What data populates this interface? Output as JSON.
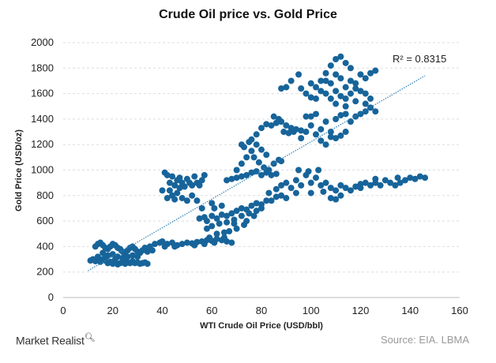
{
  "chart_data": {
    "type": "scatter",
    "title": "Crude Oil price vs. Gold Price",
    "xlabel": "WTI Crude Oil Price (USD/bbl)",
    "ylabel": "Gold Price (USD/oz)",
    "xlim": [
      0,
      160
    ],
    "ylim": [
      0,
      2000
    ],
    "xticks": [
      0,
      20,
      40,
      60,
      80,
      100,
      120,
      140,
      160
    ],
    "yticks": [
      0,
      200,
      400,
      600,
      800,
      1000,
      1200,
      1400,
      1600,
      1800,
      2000
    ],
    "grid": "horizontal dashed",
    "marker_color": "#17649a",
    "trendline": {
      "type": "linear",
      "from": [
        10,
        210
      ],
      "to": [
        146,
        1740
      ],
      "color": "#2f7fb5",
      "label": "R² = 0.8315"
    },
    "points": [
      [
        11,
        290
      ],
      [
        12,
        300
      ],
      [
        13,
        285
      ],
      [
        14,
        295
      ],
      [
        15,
        280
      ],
      [
        16,
        300
      ],
      [
        17,
        290
      ],
      [
        18,
        270
      ],
      [
        19,
        280
      ],
      [
        20,
        265
      ],
      [
        21,
        275
      ],
      [
        22,
        260
      ],
      [
        23,
        270
      ],
      [
        24,
        280
      ],
      [
        25,
        265
      ],
      [
        26,
        275
      ],
      [
        27,
        270
      ],
      [
        28,
        285
      ],
      [
        29,
        270
      ],
      [
        30,
        275
      ],
      [
        31,
        265
      ],
      [
        32,
        270
      ],
      [
        33,
        275
      ],
      [
        34,
        265
      ],
      [
        13,
        400
      ],
      [
        14,
        420
      ],
      [
        15,
        430
      ],
      [
        16,
        410
      ],
      [
        17,
        390
      ],
      [
        18,
        380
      ],
      [
        19,
        400
      ],
      [
        20,
        420
      ],
      [
        21,
        410
      ],
      [
        22,
        390
      ],
      [
        23,
        380
      ],
      [
        24,
        360
      ],
      [
        25,
        340
      ],
      [
        26,
        370
      ],
      [
        27,
        390
      ],
      [
        28,
        400
      ],
      [
        29,
        380
      ],
      [
        30,
        360
      ],
      [
        31,
        350
      ],
      [
        32,
        370
      ],
      [
        33,
        390
      ],
      [
        20,
        340
      ],
      [
        22,
        320
      ],
      [
        24,
        310
      ],
      [
        18,
        330
      ],
      [
        16,
        350
      ],
      [
        26,
        320
      ],
      [
        28,
        330
      ],
      [
        30,
        320
      ],
      [
        21,
        300
      ],
      [
        25,
        300
      ],
      [
        17,
        310
      ],
      [
        14,
        320
      ],
      [
        34,
        360
      ],
      [
        36,
        370
      ],
      [
        35,
        400
      ],
      [
        37,
        420
      ],
      [
        39,
        430
      ],
      [
        40,
        440
      ],
      [
        42,
        420
      ],
      [
        44,
        430
      ],
      [
        46,
        410
      ],
      [
        48,
        420
      ],
      [
        50,
        430
      ],
      [
        52,
        425
      ],
      [
        54,
        435
      ],
      [
        56,
        440
      ],
      [
        58,
        450
      ],
      [
        60,
        445
      ],
      [
        62,
        460
      ],
      [
        64,
        450
      ],
      [
        66,
        440
      ],
      [
        68,
        430
      ],
      [
        41,
        400
      ],
      [
        45,
        400
      ],
      [
        53,
        410
      ],
      [
        57,
        420
      ],
      [
        61,
        430
      ],
      [
        65,
        470
      ],
      [
        59,
        470
      ],
      [
        40,
        840
      ],
      [
        41,
        980
      ],
      [
        42,
        960
      ],
      [
        43,
        900
      ],
      [
        44,
        950
      ],
      [
        45,
        880
      ],
      [
        46,
        920
      ],
      [
        47,
        860
      ],
      [
        48,
        900
      ],
      [
        49,
        870
      ],
      [
        50,
        930
      ],
      [
        51,
        900
      ],
      [
        52,
        880
      ],
      [
        53,
        950
      ],
      [
        54,
        900
      ],
      [
        55,
        880
      ],
      [
        56,
        920
      ],
      [
        57,
        960
      ],
      [
        44,
        800
      ],
      [
        46,
        820
      ],
      [
        48,
        780
      ],
      [
        50,
        760
      ],
      [
        42,
        780
      ],
      [
        45,
        770
      ],
      [
        52,
        800
      ],
      [
        54,
        760
      ],
      [
        43,
        840
      ],
      [
        47,
        940
      ],
      [
        55,
        620
      ],
      [
        57,
        630
      ],
      [
        58,
        600
      ],
      [
        60,
        640
      ],
      [
        62,
        620
      ],
      [
        64,
        650
      ],
      [
        66,
        640
      ],
      [
        68,
        660
      ],
      [
        70,
        680
      ],
      [
        72,
        700
      ],
      [
        74,
        690
      ],
      [
        76,
        720
      ],
      [
        78,
        740
      ],
      [
        80,
        730
      ],
      [
        82,
        760
      ],
      [
        84,
        760
      ],
      [
        86,
        790
      ],
      [
        88,
        800
      ],
      [
        60,
        560
      ],
      [
        63,
        580
      ],
      [
        66,
        590
      ],
      [
        69,
        610
      ],
      [
        72,
        640
      ],
      [
        75,
        660
      ],
      [
        78,
        680
      ],
      [
        67,
        520
      ],
      [
        70,
        540
      ],
      [
        73,
        570
      ],
      [
        65,
        510
      ],
      [
        62,
        500
      ],
      [
        58,
        540
      ],
      [
        61,
        700
      ],
      [
        64,
        720
      ],
      [
        60,
        740
      ],
      [
        56,
        700
      ],
      [
        74,
        600
      ],
      [
        77,
        640
      ],
      [
        80,
        700
      ],
      [
        69,
        580
      ],
      [
        83,
        820
      ],
      [
        86,
        850
      ],
      [
        88,
        880
      ],
      [
        90,
        900
      ],
      [
        92,
        860
      ],
      [
        94,
        920
      ],
      [
        96,
        880
      ],
      [
        98,
        960
      ],
      [
        100,
        900
      ],
      [
        102,
        940
      ],
      [
        104,
        880
      ],
      [
        106,
        900
      ],
      [
        108,
        860
      ],
      [
        110,
        840
      ],
      [
        112,
        880
      ],
      [
        114,
        860
      ],
      [
        116,
        840
      ],
      [
        118,
        870
      ],
      [
        120,
        890
      ],
      [
        122,
        900
      ],
      [
        124,
        880
      ],
      [
        126,
        900
      ],
      [
        128,
        880
      ],
      [
        130,
        920
      ],
      [
        132,
        900
      ],
      [
        134,
        880
      ],
      [
        136,
        900
      ],
      [
        138,
        920
      ],
      [
        140,
        940
      ],
      [
        142,
        930
      ],
      [
        144,
        950
      ],
      [
        146,
        940
      ],
      [
        95,
        1000
      ],
      [
        99,
        990
      ],
      [
        103,
        1000
      ],
      [
        110,
        770
      ],
      [
        112,
        800
      ],
      [
        108,
        780
      ],
      [
        94,
        820
      ],
      [
        90,
        780
      ],
      [
        100,
        820
      ],
      [
        105,
        830
      ],
      [
        120,
        860
      ],
      [
        126,
        930
      ],
      [
        135,
        940
      ],
      [
        66,
        920
      ],
      [
        68,
        930
      ],
      [
        70,
        940
      ],
      [
        72,
        950
      ],
      [
        74,
        960
      ],
      [
        76,
        980
      ],
      [
        78,
        990
      ],
      [
        80,
        960
      ],
      [
        82,
        980
      ],
      [
        84,
        960
      ],
      [
        86,
        970
      ],
      [
        70,
        1000
      ],
      [
        72,
        1050
      ],
      [
        74,
        1100
      ],
      [
        76,
        1150
      ],
      [
        78,
        1200
      ],
      [
        75,
        1220
      ],
      [
        73,
        1180
      ],
      [
        77,
        1100
      ],
      [
        79,
        1060
      ],
      [
        81,
        1020
      ],
      [
        83,
        1000
      ],
      [
        85,
        1050
      ],
      [
        87,
        1080
      ],
      [
        88,
        1070
      ],
      [
        72,
        1200
      ],
      [
        76,
        1240
      ],
      [
        80,
        1160
      ],
      [
        82,
        1120
      ],
      [
        78,
        1280
      ],
      [
        80,
        1330
      ],
      [
        82,
        1360
      ],
      [
        84,
        1350
      ],
      [
        86,
        1370
      ],
      [
        88,
        1380
      ],
      [
        90,
        1350
      ],
      [
        92,
        1330
      ],
      [
        94,
        1320
      ],
      [
        96,
        1310
      ],
      [
        85,
        1420
      ],
      [
        87,
        1400
      ],
      [
        89,
        1300
      ],
      [
        91,
        1290
      ],
      [
        93,
        1300
      ],
      [
        96,
        1250
      ],
      [
        98,
        1300
      ],
      [
        100,
        1350
      ],
      [
        102,
        1280
      ],
      [
        104,
        1320
      ],
      [
        106,
        1380
      ],
      [
        108,
        1300
      ],
      [
        110,
        1250
      ],
      [
        112,
        1270
      ],
      [
        114,
        1300
      ],
      [
        116,
        1380
      ],
      [
        118,
        1420
      ],
      [
        120,
        1440
      ],
      [
        122,
        1460
      ],
      [
        124,
        1490
      ],
      [
        126,
        1460
      ],
      [
        104,
        1230
      ],
      [
        106,
        1200
      ],
      [
        108,
        1260
      ],
      [
        110,
        1400
      ],
      [
        112,
        1430
      ],
      [
        114,
        1440
      ],
      [
        100,
        1420
      ],
      [
        102,
        1440
      ],
      [
        98,
        1420
      ],
      [
        98,
        1600
      ],
      [
        100,
        1570
      ],
      [
        102,
        1650
      ],
      [
        104,
        1620
      ],
      [
        106,
        1700
      ],
      [
        108,
        1680
      ],
      [
        110,
        1750
      ],
      [
        112,
        1720
      ],
      [
        114,
        1650
      ],
      [
        116,
        1700
      ],
      [
        118,
        1680
      ],
      [
        120,
        1750
      ],
      [
        122,
        1720
      ],
      [
        124,
        1760
      ],
      [
        126,
        1780
      ],
      [
        108,
        1820
      ],
      [
        110,
        1870
      ],
      [
        112,
        1890
      ],
      [
        114,
        1840
      ],
      [
        106,
        1600
      ],
      [
        108,
        1560
      ],
      [
        110,
        1620
      ],
      [
        112,
        1580
      ],
      [
        114,
        1560
      ],
      [
        116,
        1600
      ],
      [
        118,
        1640
      ],
      [
        120,
        1620
      ],
      [
        122,
        1600
      ],
      [
        124,
        1560
      ],
      [
        104,
        1700
      ],
      [
        100,
        1680
      ],
      [
        96,
        1640
      ],
      [
        95,
        1750
      ],
      [
        92,
        1700
      ],
      [
        90,
        1650
      ],
      [
        88,
        1640
      ],
      [
        110,
        1520
      ],
      [
        114,
        1500
      ],
      [
        118,
        1540
      ],
      [
        122,
        1520
      ],
      [
        106,
        1760
      ],
      [
        116,
        1800
      ],
      [
        102,
        1560
      ]
    ]
  },
  "footer": {
    "brand": "Market Realist",
    "brand_icon": "magnifier-icon",
    "source": "Source: EIA. LBMA"
  }
}
